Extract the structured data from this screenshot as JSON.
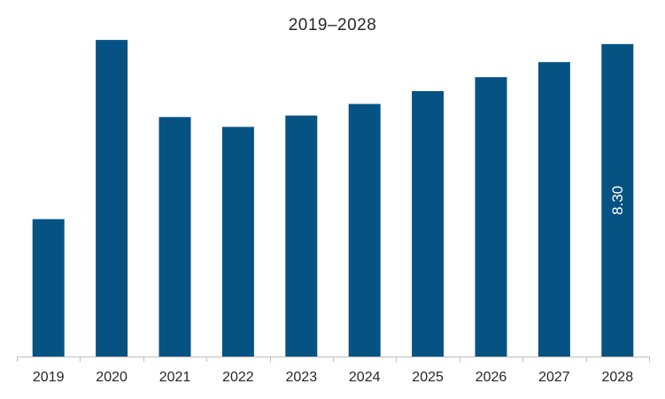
{
  "chart_data": {
    "type": "bar",
    "title": "2019–2028",
    "categories": [
      "2019",
      "2020",
      "2021",
      "2022",
      "2023",
      "2024",
      "2025",
      "2026",
      "2027",
      "2028"
    ],
    "values": [
      3.65,
      8.41,
      6.36,
      6.1,
      6.4,
      6.71,
      7.05,
      7.42,
      7.82,
      8.3
    ],
    "data_labels": [
      {
        "category": "2028",
        "text": "8.30"
      }
    ],
    "xlabel": "",
    "ylabel": "",
    "ylim": [
      0,
      9.0
    ],
    "grid": false,
    "legend": "none",
    "bar_color": "#065283"
  }
}
